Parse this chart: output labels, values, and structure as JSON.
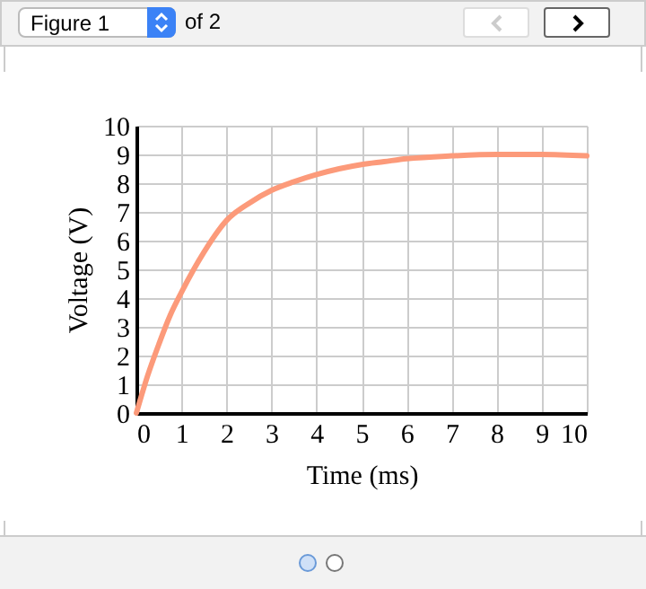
{
  "chart_data": {
    "type": "line",
    "xlabel": "Time (ms)",
    "ylabel": "Voltage (V)",
    "annotations": [
      "Figure 1",
      "of 2"
    ],
    "x": [
      0,
      0.25,
      0.5,
      0.75,
      1,
      1.5,
      2,
      2.5,
      3,
      3.5,
      4,
      4.5,
      5,
      5.5,
      6,
      7,
      8,
      9,
      10
    ],
    "series": [
      {
        "color": "#fc9a7a",
        "values": [
          0,
          1.3,
          2.4,
          3.4,
          4.2,
          5.6,
          6.7,
          7.3,
          7.75,
          8.05,
          8.3,
          8.5,
          8.65,
          8.75,
          8.85,
          8.95,
          9.0,
          9.0,
          8.95
        ]
      }
    ],
    "xlim": [
      0,
      10
    ],
    "xticks": [
      0,
      1,
      2,
      3,
      4,
      5,
      6,
      7,
      8,
      9,
      10
    ],
    "ylim": [
      0,
      10
    ],
    "yticks": [
      0,
      1,
      2,
      3,
      4,
      5,
      6,
      7,
      8,
      9,
      10
    ],
    "grid": true,
    "marker": "none",
    "line_style": "solid"
  }
}
